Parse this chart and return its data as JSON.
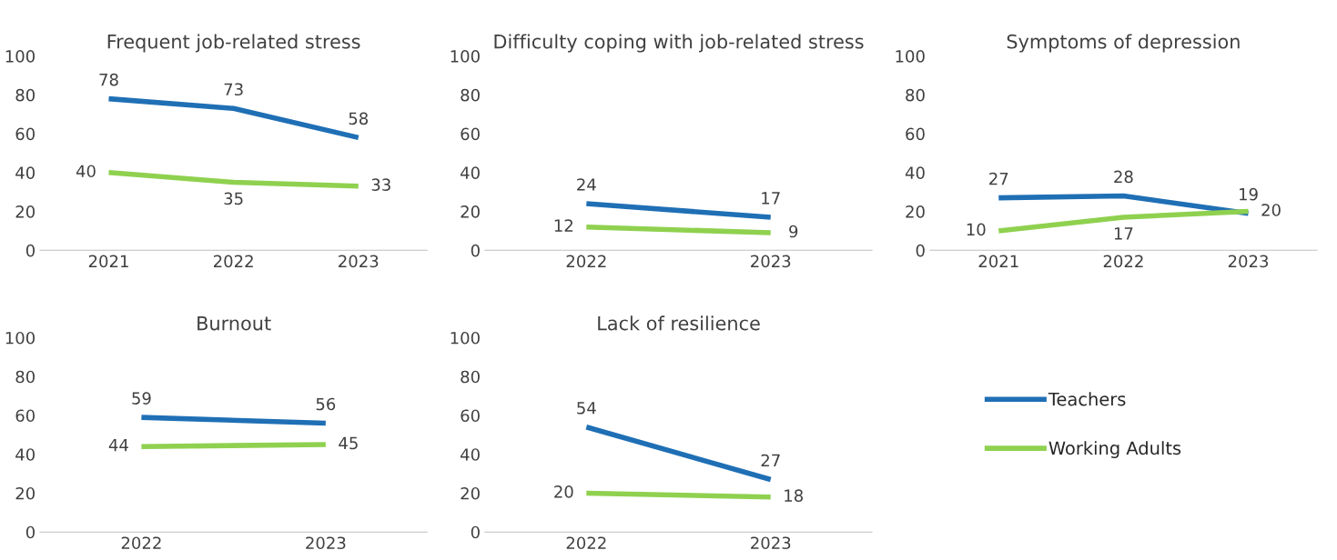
{
  "chart_data": [
    {
      "type": "line",
      "title": "Frequent job-related stress",
      "categories": [
        "2021",
        "2022",
        "2023"
      ],
      "ylim": [
        0,
        100
      ],
      "yticks": [
        0,
        20,
        40,
        60,
        80,
        100
      ],
      "grid": false,
      "data_labels": true,
      "legend": false,
      "series": [
        {
          "color": "#1f6fb5",
          "values": [
            78,
            73,
            58
          ]
        },
        {
          "color": "#8fd14f",
          "values": [
            40,
            35,
            33
          ]
        }
      ]
    },
    {
      "type": "line",
      "title": "Difficulty coping with job-related stress",
      "categories": [
        "2022",
        "2023"
      ],
      "ylim": [
        0,
        100
      ],
      "yticks": [
        0,
        20,
        40,
        60,
        80,
        100
      ],
      "grid": false,
      "data_labels": true,
      "legend": false,
      "series": [
        {
          "color": "#1f6fb5",
          "values": [
            24,
            17
          ]
        },
        {
          "color": "#8fd14f",
          "values": [
            12,
            9
          ]
        }
      ]
    },
    {
      "type": "line",
      "title": "Symptoms of depression",
      "categories": [
        "2021",
        "2022",
        "2023"
      ],
      "ylim": [
        0,
        100
      ],
      "yticks": [
        0,
        20,
        40,
        60,
        80,
        100
      ],
      "grid": false,
      "data_labels": true,
      "legend": false,
      "series": [
        {
          "color": "#1f6fb5",
          "values": [
            27,
            28,
            19
          ]
        },
        {
          "color": "#8fd14f",
          "values": [
            10,
            17,
            20
          ]
        }
      ]
    },
    {
      "type": "line",
      "title": "Burnout",
      "categories": [
        "2022",
        "2023"
      ],
      "ylim": [
        0,
        100
      ],
      "yticks": [
        0,
        20,
        40,
        60,
        80,
        100
      ],
      "grid": false,
      "data_labels": true,
      "legend": false,
      "series": [
        {
          "color": "#1f6fb5",
          "values": [
            59,
            56
          ]
        },
        {
          "color": "#8fd14f",
          "values": [
            44,
            45
          ]
        }
      ]
    },
    {
      "type": "line",
      "title": "Lack of resilience",
      "categories": [
        "2022",
        "2023"
      ],
      "ylim": [
        0,
        100
      ],
      "yticks": [
        0,
        20,
        40,
        60,
        80,
        100
      ],
      "grid": false,
      "data_labels": true,
      "legend": "right",
      "series": [
        {
          "name": "Teachers",
          "color": "#1f6fb5",
          "values": [
            54,
            27
          ]
        },
        {
          "name": "Working Adults",
          "color": "#8fd14f",
          "values": [
            20,
            18
          ]
        }
      ]
    }
  ]
}
